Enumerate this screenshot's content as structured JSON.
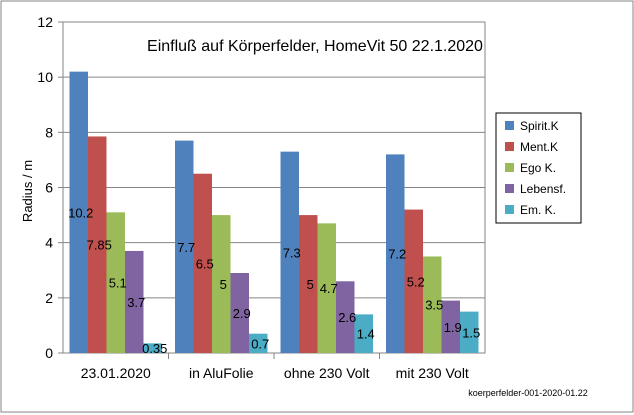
{
  "chart_data": {
    "type": "bar",
    "title": "Einfluß auf Körperfelder,  HomeVit 50   22.1.2020",
    "xlabel": "",
    "ylabel": "Radius / m",
    "ylim": [
      0,
      12
    ],
    "yticks": [
      0,
      2,
      4,
      6,
      8,
      10,
      12
    ],
    "grid": true,
    "legend_position": "right",
    "categories": [
      "23.01.2020",
      "in AluFolie",
      "ohne 230 Volt",
      "mit 230 Volt"
    ],
    "series": [
      {
        "name": "Spirit.K",
        "color": "#4F81BD",
        "values": [
          10.2,
          7.7,
          7.3,
          7.2
        ],
        "labels": [
          "10.2",
          "7.7",
          "7.3",
          "7.2"
        ]
      },
      {
        "name": "Ment.K",
        "color": "#C0504D",
        "values": [
          7.85,
          6.5,
          5,
          5.2
        ],
        "labels": [
          "7.85",
          "6.5",
          "5",
          "5.2"
        ]
      },
      {
        "name": "Ego K.",
        "color": "#9BBB59",
        "values": [
          5.1,
          5,
          4.7,
          3.5
        ],
        "labels": [
          "5.1",
          "5",
          "4.7",
          "3.5"
        ]
      },
      {
        "name": "Lebensf.",
        "color": "#8064A2",
        "values": [
          3.7,
          2.9,
          2.6,
          1.9
        ],
        "labels": [
          "3.7",
          "2.9",
          "2.6",
          "1.9"
        ]
      },
      {
        "name": "Em. K.",
        "color": "#4BACC6",
        "values": [
          0.35,
          0.7,
          1.4,
          1.5
        ],
        "labels": [
          "0.35",
          "0.7",
          "1.4",
          "1.5"
        ]
      }
    ]
  },
  "footer": {
    "source_label": "koerperfelder-001-2020-01.22"
  },
  "colors": {
    "grid": "#868686",
    "frame": "#868686",
    "background": "#ffffff"
  }
}
